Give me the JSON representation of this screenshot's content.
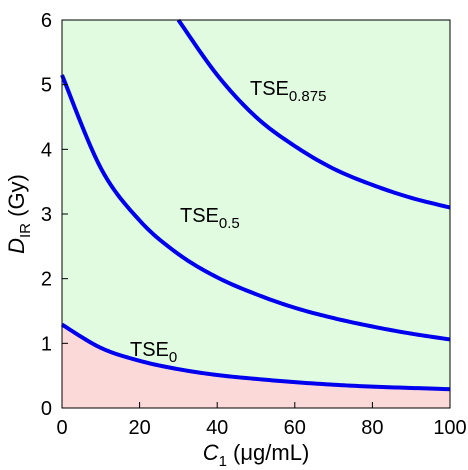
{
  "chart_data": {
    "type": "line",
    "xlabel": {
      "var": "C",
      "sub": "1",
      "unit": " (μg/mL)"
    },
    "ylabel": {
      "var": "D",
      "sub": "IR",
      "unit": " (Gy)"
    },
    "xlim": [
      0,
      100
    ],
    "ylim": [
      0,
      6
    ],
    "xticks": [
      "0",
      "20",
      "40",
      "60",
      "80",
      "100"
    ],
    "yticks": [
      "0",
      "1",
      "2",
      "3",
      "4",
      "5",
      "6"
    ],
    "grid": false,
    "region_colors": {
      "above": "#e0fbe0",
      "below": "#fbd9d9"
    },
    "series": [
      {
        "name": "TSE_0",
        "label": {
          "main": "TSE",
          "sub": "0"
        },
        "color": "#0000ee",
        "x": [
          0,
          10,
          20,
          30,
          40,
          50,
          60,
          70,
          80,
          90,
          100
        ],
        "y": [
          1.29,
          0.93,
          0.73,
          0.6,
          0.51,
          0.45,
          0.4,
          0.36,
          0.33,
          0.31,
          0.29
        ]
      },
      {
        "name": "TSE_0.5",
        "label": {
          "main": "TSE",
          "sub": "0.5"
        },
        "color": "#0000ee",
        "x": [
          0,
          10,
          20,
          30,
          40,
          50,
          60,
          70,
          80,
          90,
          100
        ],
        "y": [
          5.15,
          3.71,
          2.9,
          2.38,
          2.02,
          1.76,
          1.55,
          1.39,
          1.26,
          1.15,
          1.06
        ]
      },
      {
        "name": "TSE_0.875",
        "label": {
          "main": "TSE",
          "sub": "0.875"
        },
        "color": "#0000ee",
        "x": [
          30,
          40,
          50,
          60,
          70,
          80,
          90,
          100
        ],
        "y": [
          6.0,
          5.15,
          4.5,
          4.05,
          3.7,
          3.45,
          3.25,
          3.1
        ]
      }
    ]
  }
}
